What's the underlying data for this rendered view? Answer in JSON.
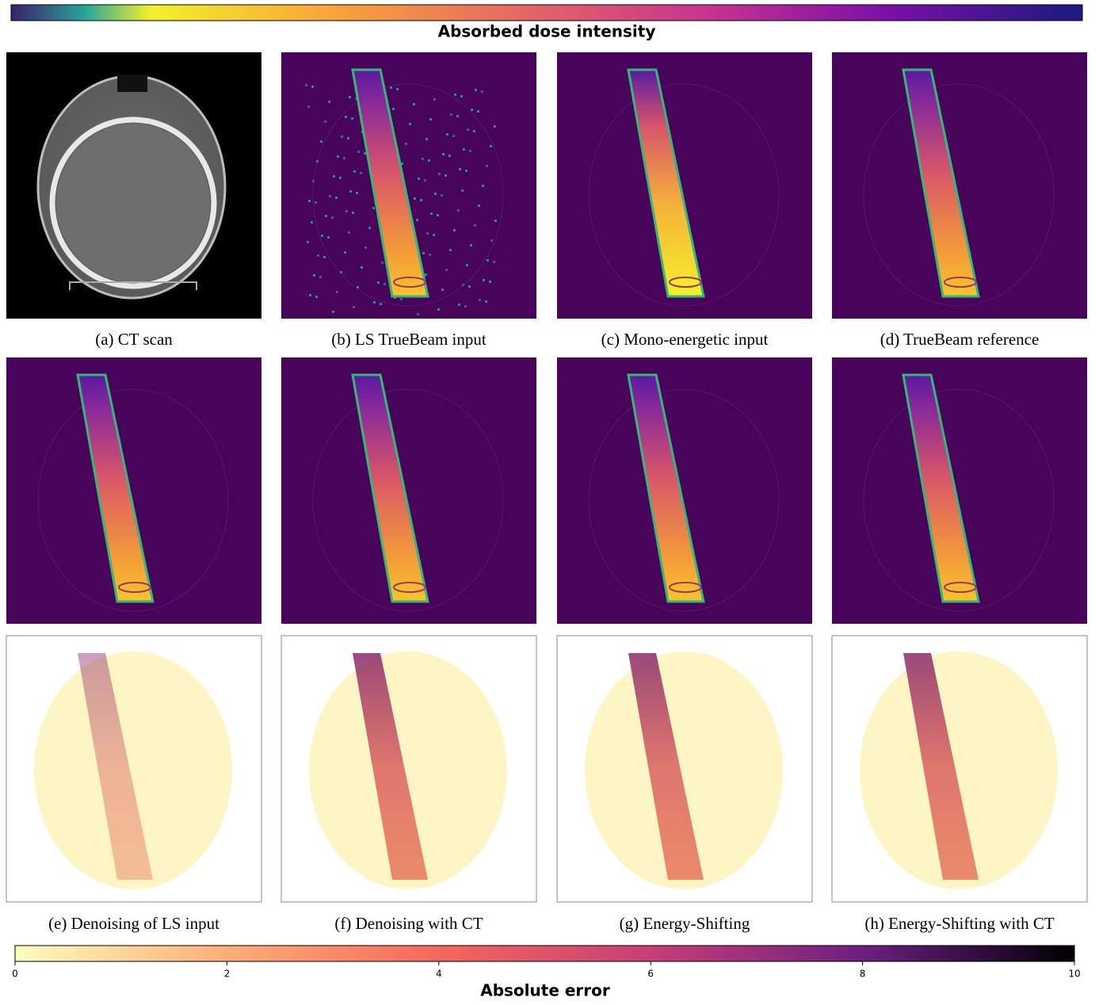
{
  "top_colorbar": {
    "label": "Absorbed dose intensity"
  },
  "panels": [
    {
      "caption": "(a) CT scan"
    },
    {
      "caption": "(b) LS TrueBeam input"
    },
    {
      "caption": "(c) Mono-energetic input"
    },
    {
      "caption": "(d) TrueBeam reference"
    },
    {
      "caption": "(e) Denoising of LS input"
    },
    {
      "caption": "(f) Denoising with CT"
    },
    {
      "caption": "(g) Energy-Shifting"
    },
    {
      "caption": "(h) Energy-Shifting with CT"
    }
  ],
  "error_colorbar": {
    "label": "Absolute error",
    "lim": [
      0,
      10
    ],
    "ticks": [
      0,
      2,
      4,
      6,
      8,
      10
    ]
  }
}
